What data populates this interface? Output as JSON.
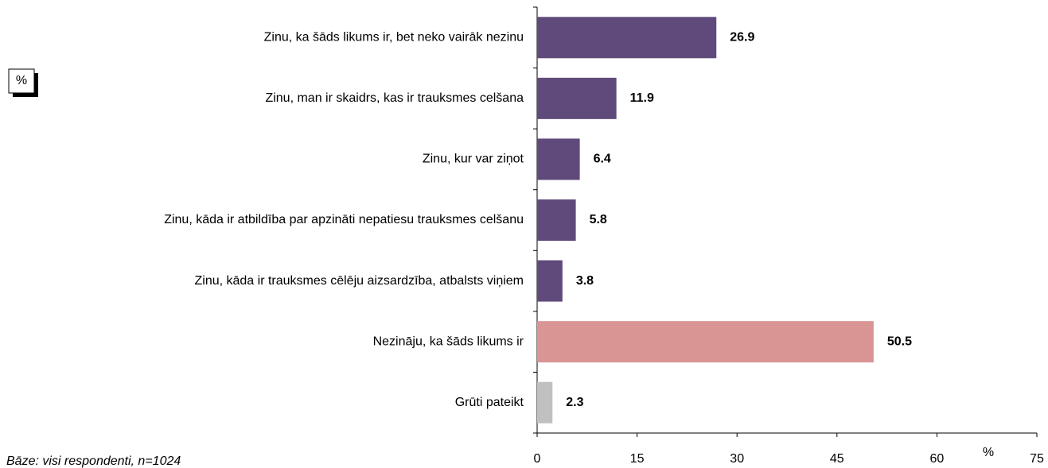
{
  "chart_data": {
    "type": "hbar",
    "categories": [
      "Zinu, ka šāds likums ir, bet neko vairāk nezinu",
      "Zinu, man ir skaidrs, kas ir trauksmes celšana",
      "Zinu, kur var ziņot",
      "Zinu, kāda ir atbildība par apzināti nepatiesu trauksmes celšanu",
      "Zinu, kāda ir trauksmes cēlēju aizsardzība, atbalsts viņiem",
      "Nezināju, ka šāds likums ir",
      "Grūti pateikt"
    ],
    "values": [
      26.9,
      11.9,
      6.4,
      5.8,
      3.8,
      50.5,
      2.3
    ],
    "colors": [
      "#5f4a7b",
      "#5f4a7b",
      "#5f4a7b",
      "#5f4a7b",
      "#5f4a7b",
      "#d99594",
      "#c0c0c0"
    ],
    "xlim": [
      0,
      75
    ],
    "xticks": [
      0,
      15,
      30,
      45,
      60,
      75
    ],
    "x_label": "%",
    "unit_box": "%",
    "footnote": "Bāze: visi respondenti, n=1024"
  }
}
